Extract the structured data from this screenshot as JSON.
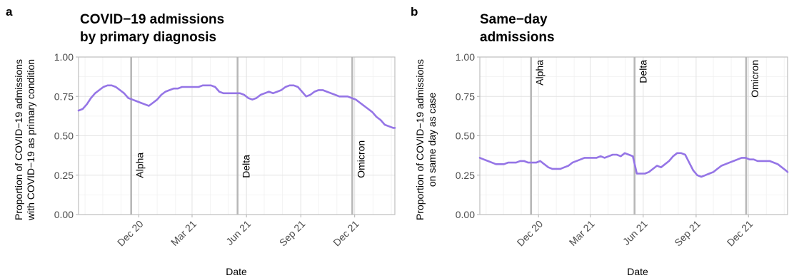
{
  "chart_data": [
    {
      "type": "line",
      "panel_letter": "a",
      "title": [
        "COVID−19 admissions",
        "by primary diagnosis"
      ],
      "xlabel": "Date",
      "ylabel": [
        "Proportion of COVID−19 admissions",
        "with COVID−19 as primary condition"
      ],
      "ylim": [
        0,
        1
      ],
      "yticks": [
        {
          "value": 0.0,
          "label": "0.00"
        },
        {
          "value": 0.25,
          "label": "0.25"
        },
        {
          "value": 0.5,
          "label": "0.50"
        },
        {
          "value": 0.75,
          "label": "0.75"
        },
        {
          "value": 1.0,
          "label": "1.00"
        }
      ],
      "xlim": [
        "2020-08-21",
        "2022-02-07"
      ],
      "xticks": [
        {
          "date": "2020-12-01",
          "label": "Dec 20"
        },
        {
          "date": "2021-03-01",
          "label": "Mar 21"
        },
        {
          "date": "2021-06-01",
          "label": "Jun 21"
        },
        {
          "date": "2021-09-01",
          "label": "Sep 21"
        },
        {
          "date": "2021-12-01",
          "label": "Dec 21"
        }
      ],
      "grid": true,
      "variant_lines": [
        {
          "label": "Alpha",
          "date": "2020-11-18",
          "label_position": "bottom"
        },
        {
          "label": "Delta",
          "date": "2021-05-17",
          "label_position": "bottom"
        },
        {
          "label": "Omicron",
          "date": "2021-11-27",
          "label_position": "bottom"
        }
      ],
      "series": [
        {
          "color": "#9575e6",
          "x": [
            "2020-08-21",
            "2020-08-28",
            "2020-09-04",
            "2020-09-11",
            "2020-09-18",
            "2020-09-25",
            "2020-10-02",
            "2020-10-09",
            "2020-10-16",
            "2020-10-23",
            "2020-10-30",
            "2020-11-06",
            "2020-11-13",
            "2020-11-20",
            "2020-11-27",
            "2020-12-04",
            "2020-12-11",
            "2020-12-18",
            "2020-12-25",
            "2021-01-01",
            "2021-01-08",
            "2021-01-15",
            "2021-01-22",
            "2021-01-29",
            "2021-02-05",
            "2021-02-12",
            "2021-02-19",
            "2021-02-26",
            "2021-03-05",
            "2021-03-12",
            "2021-03-19",
            "2021-03-26",
            "2021-04-02",
            "2021-04-09",
            "2021-04-16",
            "2021-04-23",
            "2021-04-30",
            "2021-05-07",
            "2021-05-14",
            "2021-05-21",
            "2021-05-28",
            "2021-06-04",
            "2021-06-11",
            "2021-06-18",
            "2021-06-25",
            "2021-07-02",
            "2021-07-09",
            "2021-07-16",
            "2021-07-23",
            "2021-07-30",
            "2021-08-06",
            "2021-08-13",
            "2021-08-20",
            "2021-08-27",
            "2021-09-03",
            "2021-09-10",
            "2021-09-17",
            "2021-09-24",
            "2021-10-01",
            "2021-10-08",
            "2021-10-15",
            "2021-10-22",
            "2021-10-29",
            "2021-11-05",
            "2021-11-12",
            "2021-11-19",
            "2021-11-26",
            "2021-12-03",
            "2021-12-10",
            "2021-12-17",
            "2021-12-24",
            "2021-12-31",
            "2022-01-07",
            "2022-01-14",
            "2022-01-21",
            "2022-01-28",
            "2022-02-04",
            "2022-02-07"
          ],
          "y": [
            0.66,
            0.67,
            0.7,
            0.74,
            0.77,
            0.79,
            0.81,
            0.82,
            0.82,
            0.81,
            0.79,
            0.77,
            0.74,
            0.73,
            0.72,
            0.71,
            0.7,
            0.69,
            0.71,
            0.73,
            0.76,
            0.78,
            0.79,
            0.8,
            0.8,
            0.81,
            0.81,
            0.81,
            0.81,
            0.81,
            0.82,
            0.82,
            0.82,
            0.81,
            0.78,
            0.77,
            0.77,
            0.77,
            0.77,
            0.77,
            0.76,
            0.74,
            0.73,
            0.74,
            0.76,
            0.77,
            0.78,
            0.77,
            0.78,
            0.79,
            0.81,
            0.82,
            0.82,
            0.81,
            0.78,
            0.75,
            0.76,
            0.78,
            0.79,
            0.79,
            0.78,
            0.77,
            0.76,
            0.75,
            0.75,
            0.75,
            0.74,
            0.73,
            0.71,
            0.69,
            0.67,
            0.65,
            0.62,
            0.6,
            0.57,
            0.56,
            0.55,
            0.55
          ]
        }
      ]
    },
    {
      "type": "line",
      "panel_letter": "b",
      "title": [
        "Same−day",
        "admissions"
      ],
      "xlabel": "Date",
      "ylabel": [
        "Proportion of COVID−19 admissions",
        "on same day as case"
      ],
      "ylim": [
        0,
        1
      ],
      "yticks": [
        {
          "value": 0.0,
          "label": "0.00"
        },
        {
          "value": 0.25,
          "label": "0.25"
        },
        {
          "value": 0.5,
          "label": "0.50"
        },
        {
          "value": 0.75,
          "label": "0.75"
        },
        {
          "value": 1.0,
          "label": "1.00"
        }
      ],
      "xlim": [
        "2020-08-21",
        "2022-02-07"
      ],
      "xticks": [
        {
          "date": "2020-12-01",
          "label": "Dec 20"
        },
        {
          "date": "2021-03-01",
          "label": "Mar 21"
        },
        {
          "date": "2021-06-01",
          "label": "Jun 21"
        },
        {
          "date": "2021-09-01",
          "label": "Sep 21"
        },
        {
          "date": "2021-12-01",
          "label": "Dec 21"
        }
      ],
      "grid": true,
      "variant_lines": [
        {
          "label": "Alpha",
          "date": "2020-11-18",
          "label_position": "top"
        },
        {
          "label": "Delta",
          "date": "2021-05-17",
          "label_position": "top"
        },
        {
          "label": "Omicron",
          "date": "2021-11-27",
          "label_position": "top"
        }
      ],
      "series": [
        {
          "color": "#9575e6",
          "x": [
            "2020-08-21",
            "2020-08-28",
            "2020-09-04",
            "2020-09-11",
            "2020-09-18",
            "2020-09-25",
            "2020-10-02",
            "2020-10-09",
            "2020-10-16",
            "2020-10-23",
            "2020-10-30",
            "2020-11-06",
            "2020-11-13",
            "2020-11-20",
            "2020-11-27",
            "2020-12-04",
            "2020-12-11",
            "2020-12-18",
            "2020-12-25",
            "2021-01-01",
            "2021-01-08",
            "2021-01-15",
            "2021-01-22",
            "2021-01-29",
            "2021-02-05",
            "2021-02-12",
            "2021-02-19",
            "2021-02-26",
            "2021-03-05",
            "2021-03-12",
            "2021-03-19",
            "2021-03-26",
            "2021-04-02",
            "2021-04-09",
            "2021-04-16",
            "2021-04-23",
            "2021-04-30",
            "2021-05-07",
            "2021-05-14",
            "2021-05-21",
            "2021-05-28",
            "2021-06-04",
            "2021-06-11",
            "2021-06-18",
            "2021-06-25",
            "2021-07-02",
            "2021-07-09",
            "2021-07-16",
            "2021-07-23",
            "2021-07-30",
            "2021-08-06",
            "2021-08-13",
            "2021-08-20",
            "2021-08-27",
            "2021-09-03",
            "2021-09-10",
            "2021-09-17",
            "2021-09-24",
            "2021-10-01",
            "2021-10-08",
            "2021-10-15",
            "2021-10-22",
            "2021-10-29",
            "2021-11-05",
            "2021-11-12",
            "2021-11-19",
            "2021-11-26",
            "2021-12-03",
            "2021-12-10",
            "2021-12-17",
            "2021-12-24",
            "2021-12-31",
            "2022-01-07",
            "2022-01-14",
            "2022-01-21",
            "2022-01-28",
            "2022-02-04",
            "2022-02-07"
          ],
          "y": [
            0.36,
            0.35,
            0.34,
            0.33,
            0.32,
            0.32,
            0.32,
            0.33,
            0.33,
            0.33,
            0.34,
            0.34,
            0.33,
            0.33,
            0.33,
            0.34,
            0.32,
            0.3,
            0.29,
            0.29,
            0.29,
            0.3,
            0.31,
            0.33,
            0.34,
            0.35,
            0.36,
            0.36,
            0.36,
            0.36,
            0.37,
            0.36,
            0.37,
            0.38,
            0.38,
            0.37,
            0.39,
            0.38,
            0.37,
            0.26,
            0.26,
            0.26,
            0.27,
            0.29,
            0.31,
            0.3,
            0.32,
            0.34,
            0.37,
            0.39,
            0.39,
            0.38,
            0.33,
            0.28,
            0.25,
            0.24,
            0.25,
            0.26,
            0.27,
            0.29,
            0.31,
            0.32,
            0.33,
            0.34,
            0.35,
            0.36,
            0.36,
            0.35,
            0.35,
            0.34,
            0.34,
            0.34,
            0.34,
            0.33,
            0.32,
            0.3,
            0.28,
            0.27
          ]
        }
      ]
    }
  ]
}
